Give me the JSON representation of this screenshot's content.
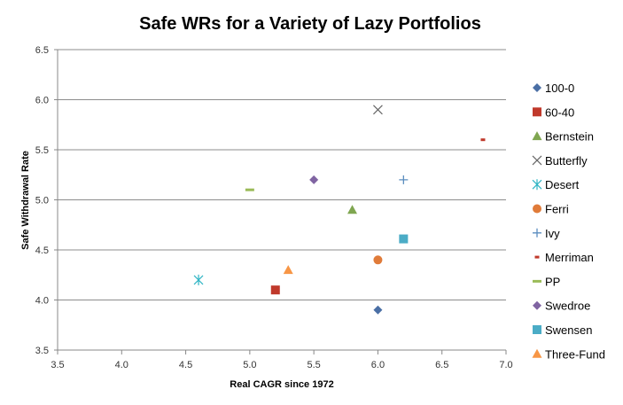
{
  "chart_data": {
    "type": "scatter",
    "title": "Safe WRs for a Variety of Lazy Portfolios",
    "xlabel": "Real CAGR since 1972",
    "ylabel": "Safe Withdrawal Rate",
    "xlim": [
      3.5,
      7.0
    ],
    "ylim": [
      3.5,
      6.5
    ],
    "xticks": [
      "3.5",
      "4.0",
      "4.5",
      "5.0",
      "5.5",
      "6.0",
      "6.5",
      "7.0"
    ],
    "yticks": [
      "3.5",
      "4.0",
      "4.5",
      "5.0",
      "5.5",
      "6.0",
      "6.5"
    ],
    "grid": "horizontal",
    "legend_position": "right",
    "series": [
      {
        "name": "100-0",
        "x": 6.0,
        "y": 3.9,
        "marker": "diamond",
        "color": "#4a6fa5"
      },
      {
        "name": "60-40",
        "x": 5.2,
        "y": 4.1,
        "marker": "square",
        "color": "#c0392b"
      },
      {
        "name": "Bernstein",
        "x": 5.8,
        "y": 4.9,
        "marker": "triangle",
        "color": "#7fa650"
      },
      {
        "name": "Butterfly",
        "x": 6.0,
        "y": 5.9,
        "marker": "x",
        "color": "#666666"
      },
      {
        "name": "Desert",
        "x": 4.6,
        "y": 4.2,
        "marker": "star",
        "color": "#2fb5c4"
      },
      {
        "name": "Ferri",
        "x": 6.0,
        "y": 4.4,
        "marker": "circle",
        "color": "#e07b39"
      },
      {
        "name": "Ivy",
        "x": 6.2,
        "y": 5.2,
        "marker": "plus",
        "color": "#5b8dbf"
      },
      {
        "name": "Merriman",
        "x": 6.82,
        "y": 5.6,
        "marker": "dash",
        "color": "#c0392b"
      },
      {
        "name": "PP",
        "x": 5.0,
        "y": 5.1,
        "marker": "longdash",
        "color": "#9bbb59"
      },
      {
        "name": "Swedroe",
        "x": 5.5,
        "y": 5.2,
        "marker": "diamond",
        "color": "#8064a2"
      },
      {
        "name": "Swensen",
        "x": 6.2,
        "y": 4.61,
        "marker": "square",
        "color": "#4bacc6"
      },
      {
        "name": "Three-Fund",
        "x": 5.3,
        "y": 4.3,
        "marker": "triangle",
        "color": "#f79646"
      }
    ]
  }
}
